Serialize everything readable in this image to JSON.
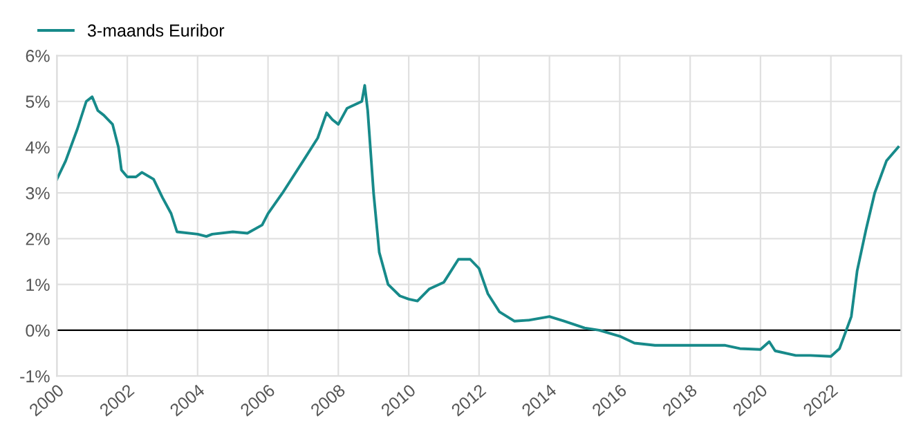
{
  "chart_data": {
    "type": "line",
    "x": [
      "2000-01",
      "2000-04",
      "2000-08",
      "2000-11",
      "2001-01",
      "2001-03",
      "2001-05",
      "2001-08",
      "2001-10",
      "2001-11",
      "2002-01",
      "2002-04",
      "2002-06",
      "2002-10",
      "2003-01",
      "2003-04",
      "2003-06",
      "2004-01",
      "2004-04",
      "2004-06",
      "2005-01",
      "2005-06",
      "2005-11",
      "2006-01",
      "2006-06",
      "2007-01",
      "2007-06",
      "2007-09",
      "2007-11",
      "2008-01",
      "2008-04",
      "2008-09",
      "2008-10",
      "2008-11",
      "2009-01",
      "2009-03",
      "2009-06",
      "2009-10",
      "2010-01",
      "2010-04",
      "2010-08",
      "2011-01",
      "2011-06",
      "2011-10",
      "2012-01",
      "2012-04",
      "2012-08",
      "2013-01",
      "2013-06",
      "2014-01",
      "2014-06",
      "2015-01",
      "2015-06",
      "2016-01",
      "2016-06",
      "2017-01",
      "2018-01",
      "2019-01",
      "2019-06",
      "2020-01",
      "2020-04",
      "2020-06",
      "2021-01",
      "2021-06",
      "2022-01",
      "2022-04",
      "2022-08",
      "2022-10",
      "2023-01",
      "2023-04",
      "2023-08",
      "2023-12"
    ],
    "series": [
      {
        "name": "3-maands Euribor",
        "color": "#178a8a",
        "values": [
          3.3,
          3.7,
          4.4,
          5.0,
          5.1,
          4.8,
          4.7,
          4.5,
          4.0,
          3.5,
          3.35,
          3.35,
          3.45,
          3.3,
          2.9,
          2.55,
          2.15,
          2.1,
          2.05,
          2.1,
          2.15,
          2.12,
          2.3,
          2.55,
          3.0,
          3.7,
          4.2,
          4.75,
          4.6,
          4.5,
          4.85,
          5.0,
          5.35,
          4.8,
          3.0,
          1.7,
          1.0,
          0.75,
          0.68,
          0.64,
          0.9,
          1.05,
          1.55,
          1.55,
          1.35,
          0.8,
          0.4,
          0.2,
          0.22,
          0.3,
          0.2,
          0.05,
          0.0,
          -0.13,
          -0.28,
          -0.33,
          -0.33,
          -0.33,
          -0.4,
          -0.42,
          -0.25,
          -0.45,
          -0.55,
          -0.55,
          -0.57,
          -0.4,
          0.3,
          1.3,
          2.2,
          3.0,
          3.7,
          4.0
        ]
      }
    ],
    "xlim": [
      "2000-01",
      "2024-01"
    ],
    "xticks": [
      "2000",
      "2002",
      "2004",
      "2006",
      "2008",
      "2010",
      "2012",
      "2014",
      "2016",
      "2018",
      "2020",
      "2022"
    ],
    "ylim": [
      -1,
      6
    ],
    "yticks": [
      {
        "value": -1,
        "label": "-1%"
      },
      {
        "value": 0,
        "label": "0%"
      },
      {
        "value": 1,
        "label": "1%"
      },
      {
        "value": 2,
        "label": "2%"
      },
      {
        "value": 3,
        "label": "3%"
      },
      {
        "value": 4,
        "label": "4%"
      },
      {
        "value": 5,
        "label": "5%"
      },
      {
        "value": 6,
        "label": "6%"
      }
    ],
    "ref_lines": [
      {
        "axis": "y",
        "value": 0,
        "color": "#000000"
      }
    ],
    "grid": true,
    "legend": "top left",
    "line_style": "solid",
    "marker": "none"
  }
}
